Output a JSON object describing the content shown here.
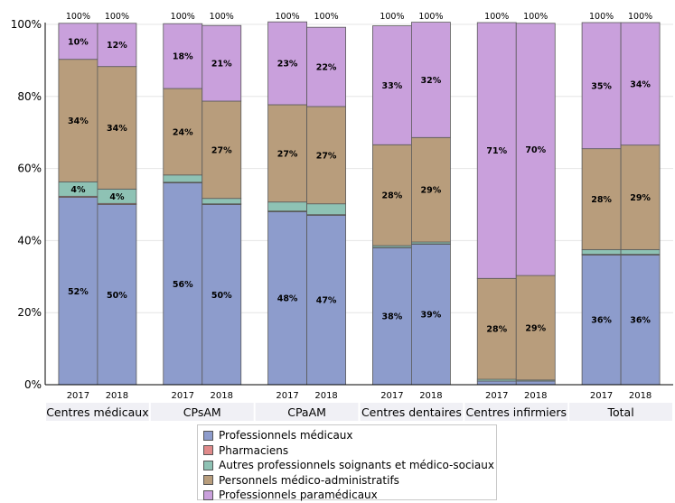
{
  "chart_data": {
    "type": "bar",
    "stacked": true,
    "y_tick_labels": [
      "0%",
      "20%",
      "40%",
      "60%",
      "80%",
      "100%"
    ],
    "ylim": [
      0,
      100
    ],
    "groups": [
      {
        "label": "Centres médicaux",
        "years": [
          "2017",
          "2018"
        ]
      },
      {
        "label": "CPsAM",
        "years": [
          "2017",
          "2018"
        ]
      },
      {
        "label": "CPaAM",
        "years": [
          "2017",
          "2018"
        ]
      },
      {
        "label": "Centres dentaires",
        "years": [
          "2017",
          "2018"
        ]
      },
      {
        "label": "Centres infirmiers",
        "years": [
          "2017",
          "2018"
        ]
      },
      {
        "label": "Total",
        "years": [
          "2017",
          "2018"
        ]
      }
    ],
    "total_label": "100%",
    "series": [
      {
        "name": "Professionnels médicaux",
        "color": "#8d9ccc",
        "values": [
          52,
          50,
          56,
          50,
          48,
          47,
          38,
          39,
          1,
          1,
          36,
          36
        ],
        "labels": [
          "52%",
          "50%",
          "56%",
          "50%",
          "48%",
          "47%",
          "38%",
          "39%",
          "",
          "",
          "36%",
          "36%"
        ]
      },
      {
        "name": "Pharmaciens",
        "color": "#e08a8a",
        "values": [
          0.3,
          0.3,
          0.2,
          0.2,
          0.2,
          0.2,
          0.1,
          0.1,
          0,
          0,
          0.2,
          0.2
        ],
        "labels": [
          "",
          "",
          "",
          "",
          "",
          "",
          "",
          "",
          "",
          "",
          "",
          ""
        ]
      },
      {
        "name": "Autres professionnels soignants et médico-sociaux",
        "color": "#8ec2b4",
        "values": [
          4,
          4,
          2,
          1.5,
          2.5,
          3,
          0.5,
          0.5,
          0.5,
          0.3,
          1.3,
          1.3
        ],
        "labels": [
          "4%",
          "4%",
          "",
          "",
          "",
          "",
          "",
          "",
          "",
          "",
          "",
          ""
        ]
      },
      {
        "name": "Personnels médico-administratifs",
        "color": "#b89d7c",
        "values": [
          34,
          34,
          24,
          27,
          27,
          27,
          28,
          29,
          28,
          29,
          28,
          29
        ],
        "labels": [
          "34%",
          "34%",
          "24%",
          "27%",
          "27%",
          "27%",
          "28%",
          "29%",
          "28%",
          "29%",
          "28%",
          "29%"
        ]
      },
      {
        "name": "Professionnels paramédicaux",
        "color": "#c9a0dc",
        "values": [
          10,
          12,
          18,
          21,
          23,
          22,
          33,
          32,
          71,
          70,
          35,
          34
        ],
        "labels": [
          "10%",
          "12%",
          "18%",
          "21%",
          "23%",
          "22%",
          "33%",
          "32%",
          "71%",
          "70%",
          "35%",
          "34%"
        ]
      }
    ]
  }
}
